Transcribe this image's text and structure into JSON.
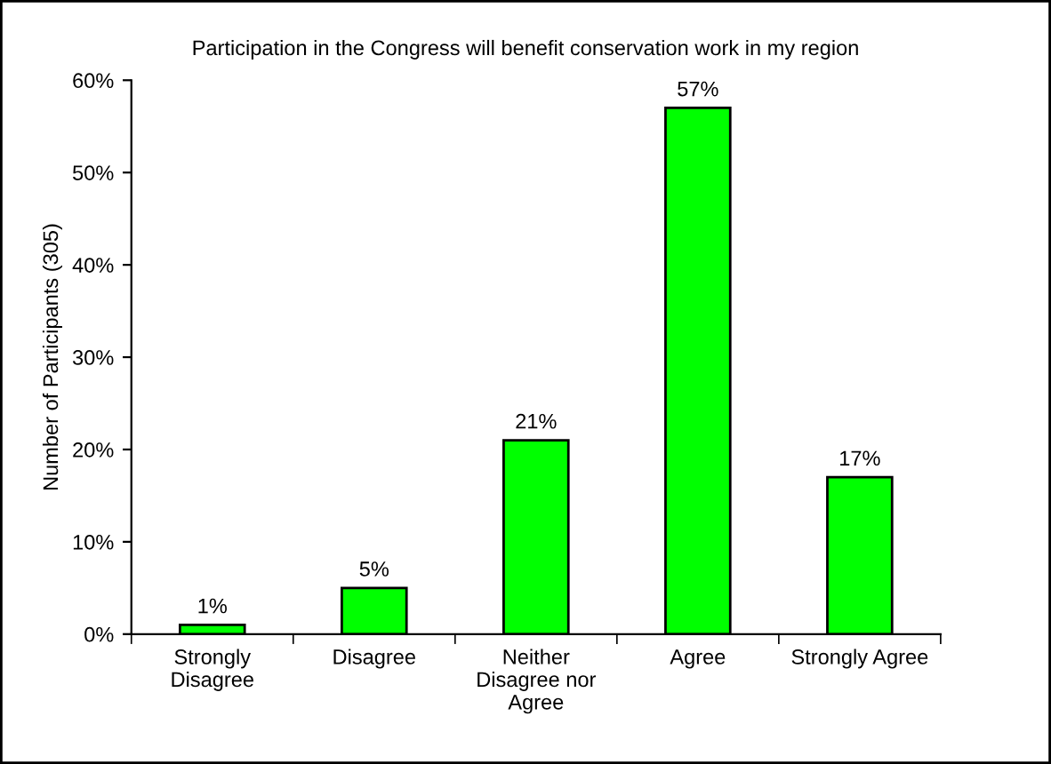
{
  "chart_data": {
    "type": "bar",
    "title": "Participation in the Congress will benefit conservation work in my region",
    "ylabel": "Number of Participants (305)",
    "categories": [
      "Strongly\nDisagree",
      "Disagree",
      "Neither\nDisagree nor\nAgree",
      "Agree",
      "Strongly Agree"
    ],
    "values": [
      1,
      5,
      21,
      57,
      17
    ],
    "color": "#00ff00",
    "data_labels": true,
    "value_labels": [
      "1%",
      "5%",
      "21%",
      "57%",
      "17%"
    ],
    "ylim": [
      0,
      60
    ],
    "yticks": [
      {
        "value": 0,
        "label": "0%"
      },
      {
        "value": 10,
        "label": "10%"
      },
      {
        "value": 20,
        "label": "20%"
      },
      {
        "value": 30,
        "label": "30%"
      },
      {
        "value": 40,
        "label": "40%"
      },
      {
        "value": 50,
        "label": "50%"
      },
      {
        "value": 60,
        "label": "60%"
      }
    ],
    "grid": false,
    "legend": false
  }
}
